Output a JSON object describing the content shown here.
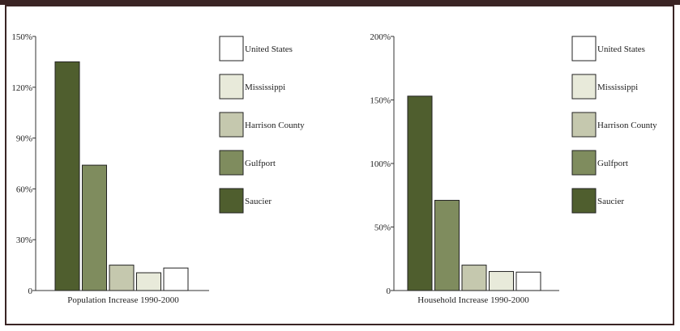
{
  "chart_data": [
    {
      "type": "bar",
      "title": "",
      "xlabel": "Population Increase 1990-2000",
      "ylabel": "",
      "ylim": [
        0,
        150
      ],
      "yticks": [
        0,
        30,
        60,
        90,
        120,
        150
      ],
      "ytick_labels": [
        "0",
        "30%",
        "60%",
        "90%",
        "120%",
        "150%"
      ],
      "categories": [
        "Saucier",
        "Gulfport",
        "Harrison County",
        "Mississippi",
        "United States"
      ],
      "values": [
        135,
        74,
        15,
        10.5,
        13.3
      ],
      "colors": [
        "#4f5e2e",
        "#7f8c5e",
        "#c5c8ae",
        "#e8eada",
        "#ffffff"
      ],
      "legend": {
        "placement": "right",
        "entries": [
          "United States",
          "Mississippi",
          "Harrison County",
          "Gulfport",
          "Saucier"
        ],
        "colors": [
          "#ffffff",
          "#e8eada",
          "#c5c8ae",
          "#7f8c5e",
          "#4f5e2e"
        ]
      }
    },
    {
      "type": "bar",
      "title": "",
      "xlabel": "Household Increase 1990-2000",
      "ylabel": "",
      "ylim": [
        0,
        200
      ],
      "yticks": [
        0,
        50,
        100,
        150,
        200
      ],
      "ytick_labels": [
        "0",
        "50%",
        "100%",
        "150%",
        "200%"
      ],
      "categories": [
        "Saucier",
        "Gulfport",
        "Harrison County",
        "Mississippi",
        "United States"
      ],
      "values": [
        153,
        71,
        20,
        15,
        14.5
      ],
      "colors": [
        "#4f5e2e",
        "#7f8c5e",
        "#c5c8ae",
        "#e8eada",
        "#ffffff"
      ],
      "legend": {
        "placement": "right",
        "entries": [
          "United States",
          "Mississippi",
          "Harrison County",
          "Gulfport",
          "Saucier"
        ],
        "colors": [
          "#ffffff",
          "#e8eada",
          "#c5c8ae",
          "#7f8c5e",
          "#4f5e2e"
        ]
      }
    }
  ]
}
